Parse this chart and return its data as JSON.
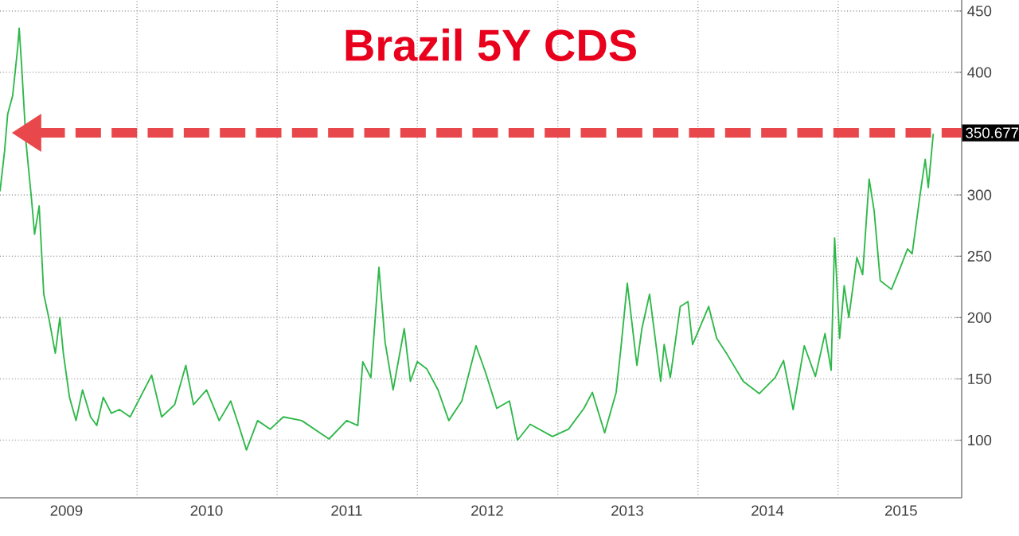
{
  "chart_data": {
    "type": "line",
    "title": "Brazil 5Y CDS",
    "x": [
      "2009-01-09",
      "2009-01-21",
      "2009-01-29",
      "2009-02-11",
      "2009-02-24",
      "2009-02-28",
      "2009-03-06",
      "2009-03-18",
      "2009-04-01",
      "2009-04-09",
      "2009-04-21",
      "2009-05-03",
      "2009-05-16",
      "2009-06-02",
      "2009-06-14",
      "2009-06-23",
      "2009-07-09",
      "2009-07-26",
      "2009-08-12",
      "2009-09-02",
      "2009-09-18",
      "2009-10-05",
      "2009-10-26",
      "2009-11-16",
      "2009-12-14",
      "2010-02-08",
      "2010-03-06",
      "2010-04-09",
      "2010-05-08",
      "2010-05-28",
      "2010-07-01",
      "2010-08-03",
      "2010-09-02",
      "2010-09-23",
      "2010-10-13",
      "2010-11-11",
      "2010-12-14",
      "2011-01-17",
      "2011-03-06",
      "2011-05-16",
      "2011-07-01",
      "2011-07-30",
      "2011-08-12",
      "2011-09-02",
      "2011-09-23",
      "2011-10-09",
      "2011-10-30",
      "2011-11-28",
      "2011-12-14",
      "2012-01-01",
      "2012-01-26",
      "2012-02-24",
      "2012-03-23",
      "2012-04-26",
      "2012-06-02",
      "2012-06-27",
      "2012-07-26",
      "2012-08-28",
      "2012-09-18",
      "2012-10-21",
      "2012-12-18",
      "2013-01-29",
      "2013-03-10",
      "2013-04-01",
      "2013-05-03",
      "2013-06-02",
      "2013-06-14",
      "2013-07-01",
      "2013-07-26",
      "2013-08-08",
      "2013-08-28",
      "2013-09-26",
      "2013-10-05",
      "2013-10-21",
      "2013-11-16",
      "2013-12-06",
      "2013-12-18",
      "2014-01-29",
      "2014-02-19",
      "2014-03-18",
      "2014-04-29",
      "2014-06-10",
      "2014-07-21",
      "2014-08-12",
      "2014-09-06",
      "2014-10-05",
      "2014-11-03",
      "2014-11-28",
      "2014-12-14",
      "2014-12-23",
      "2015-01-05",
      "2015-01-17",
      "2015-01-29",
      "2015-02-19",
      "2015-03-06",
      "2015-03-23",
      "2015-04-05",
      "2015-04-21",
      "2015-05-20",
      "2015-06-10",
      "2015-07-01",
      "2015-07-13",
      "2015-08-03",
      "2015-08-16",
      "2015-08-24",
      "2015-09-06"
    ],
    "series": [
      {
        "color": "#2fb84a",
        "values": [
          303,
          336,
          366,
          381,
          420,
          436,
          407,
          342,
          297,
          268,
          291,
          219,
          200,
          171,
          200,
          171,
          135,
          116,
          141,
          119,
          112,
          135,
          122,
          125,
          119,
          153,
          119,
          129,
          161,
          129,
          141,
          116,
          132,
          112,
          92,
          116,
          109,
          119,
          116,
          101,
          116,
          112,
          164,
          151,
          241,
          180,
          141,
          191,
          148,
          164,
          158,
          141,
          116,
          132,
          177,
          155,
          126,
          132,
          100,
          113,
          103,
          109,
          126,
          139,
          106,
          139,
          174,
          228,
          161,
          191,
          219,
          148,
          178,
          151,
          209,
          213,
          178,
          209,
          183,
          170,
          148,
          138,
          151,
          165,
          125,
          177,
          152,
          187,
          157,
          265,
          183,
          226,
          200,
          249,
          235,
          313,
          287,
          230,
          223,
          239,
          256,
          252,
          301,
          329,
          306,
          350
        ]
      }
    ],
    "xlim": [
      "2009-01-09",
      "2015-11-19"
    ],
    "xticks": [
      {
        "value": "2009-07-01",
        "label": "2009"
      },
      {
        "value": "2010-01-01",
        "label": null
      },
      {
        "value": "2010-07-01",
        "label": "2010"
      },
      {
        "value": "2011-01-01",
        "label": null
      },
      {
        "value": "2011-07-01",
        "label": "2011"
      },
      {
        "value": "2012-01-01",
        "label": null
      },
      {
        "value": "2012-07-01",
        "label": "2012"
      },
      {
        "value": "2013-01-01",
        "label": null
      },
      {
        "value": "2013-07-01",
        "label": "2013"
      },
      {
        "value": "2014-01-01",
        "label": null
      },
      {
        "value": "2014-07-01",
        "label": "2014"
      },
      {
        "value": "2015-01-01",
        "label": null
      },
      {
        "value": "2015-06-14",
        "label": "2015"
      }
    ],
    "ylim": [
      53,
      459
    ],
    "yticks": [
      100,
      150,
      200,
      250,
      300,
      400,
      450
    ],
    "grid": true,
    "ref_lines": [
      {
        "axis": "y",
        "value": 350.677,
        "label": "350.677",
        "color": "#e8484b",
        "line_style": "dashed"
      }
    ]
  }
}
